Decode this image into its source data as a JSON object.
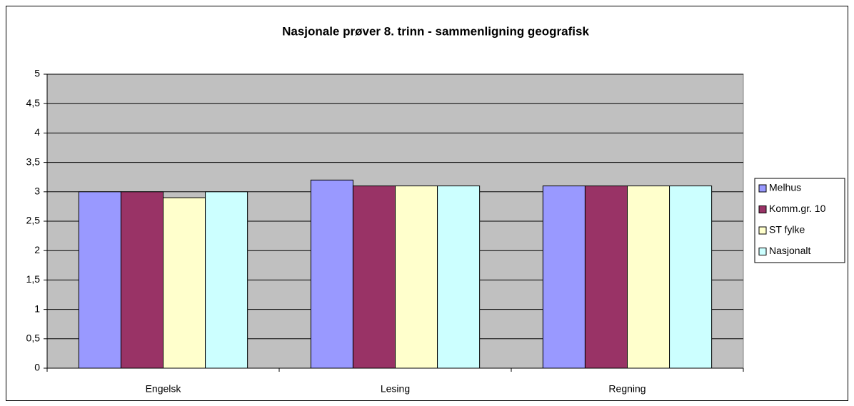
{
  "chart_data": {
    "type": "bar",
    "title": "Nasjonale prøver 8. trinn - sammenligning geografisk",
    "categories": [
      "Engelsk",
      "Lesing",
      "Regning"
    ],
    "series": [
      {
        "name": "Melhus",
        "color": "#9999ff",
        "values": [
          3.0,
          3.2,
          3.1
        ]
      },
      {
        "name": "Komm.gr. 10",
        "color": "#993366",
        "values": [
          3.0,
          3.1,
          3.1
        ]
      },
      {
        "name": "ST fylke",
        "color": "#ffffcc",
        "values": [
          2.9,
          3.1,
          3.1
        ]
      },
      {
        "name": "Nasjonalt",
        "color": "#ccffff",
        "values": [
          3.0,
          3.1,
          3.1
        ]
      }
    ],
    "ylim": [
      0,
      5
    ],
    "yticks": [
      0,
      {
        "value": 0.5,
        "label": "0,5"
      },
      1,
      {
        "value": 1.5,
        "label": "1,5"
      },
      2,
      {
        "value": 2.5,
        "label": "2,5"
      },
      3,
      {
        "value": 3.5,
        "label": "3,5"
      },
      4,
      {
        "value": 4.5,
        "label": "4,5"
      },
      5
    ],
    "grid": true,
    "legend": "right"
  }
}
